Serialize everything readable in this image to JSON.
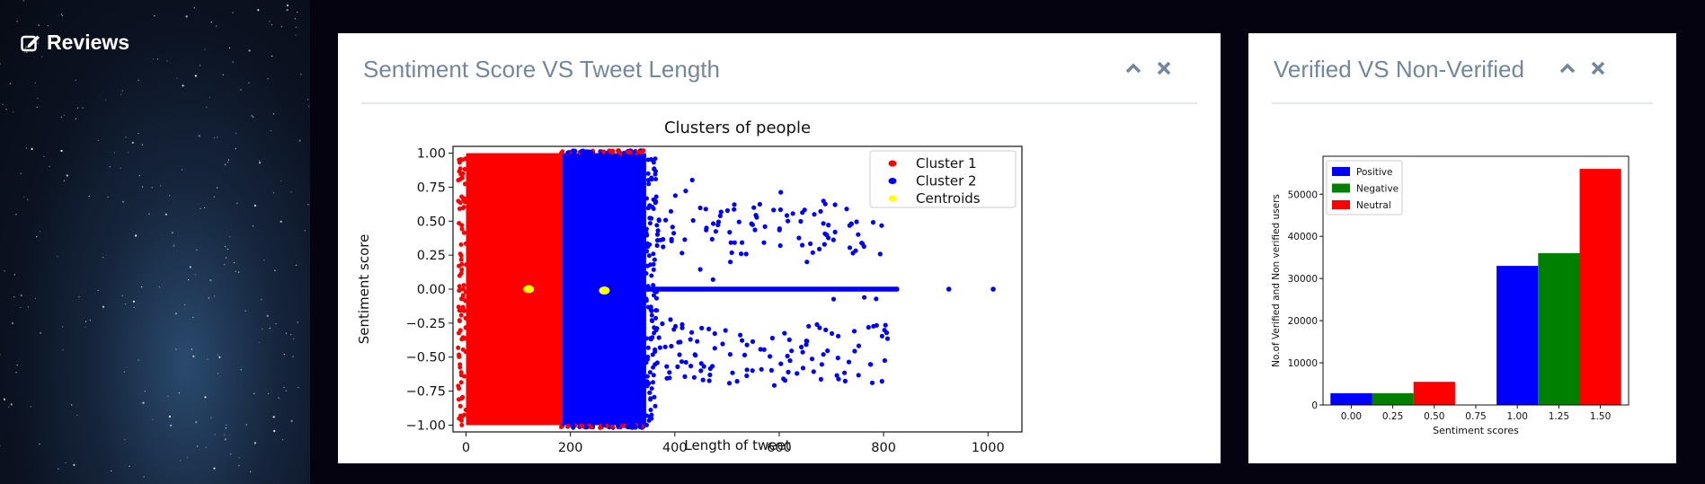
{
  "sidebar": {
    "items": [
      {
        "label": "Reviews",
        "icon": "edit-icon"
      }
    ]
  },
  "panels": [
    {
      "title": "Sentiment Score VS Tweet Length",
      "controls": [
        "chevron-up-icon",
        "close-icon"
      ]
    },
    {
      "title": "Verified VS Non-Verified",
      "controls": [
        "chevron-up-icon",
        "close-icon"
      ]
    }
  ],
  "chart_data": [
    {
      "type": "scatter",
      "title": "Clusters of people",
      "xlabel": "Length of tweet",
      "ylabel": "Sentiment score",
      "xlim": [
        -25,
        1065
      ],
      "ylim": [
        -1.05,
        1.05
      ],
      "xticks": [
        "0",
        "200",
        "400",
        "600",
        "800",
        "1000"
      ],
      "yticks": [
        "1.00",
        "0.75",
        "0.50",
        "0.25",
        "0.00",
        "−0.25",
        "−0.50",
        "−0.75",
        "−1.00"
      ],
      "legend": "top-right",
      "series": [
        {
          "name": "Cluster 1",
          "color": "#ff0000",
          "x_range": [
            0,
            185
          ],
          "y_range": [
            -1,
            1
          ]
        },
        {
          "name": "Cluster 2",
          "color": "#0000ff",
          "x_range": [
            185,
            345
          ],
          "y_range": [
            -1,
            1
          ],
          "sparse_x_range": [
            345,
            810
          ],
          "zero_line_x_range": [
            345,
            830
          ],
          "outliers": [
            [
              925,
              0
            ],
            [
              1010,
              0
            ]
          ]
        },
        {
          "name": "Centroids",
          "color": "#ffff00",
          "points": [
            [
              120,
              0.0
            ],
            [
              265,
              -0.01
            ]
          ]
        }
      ]
    },
    {
      "type": "bar",
      "xlabel": "Sentiment scores",
      "ylabel": "No.of Verified and Non verified users",
      "xlim": [
        -0.17,
        1.67
      ],
      "ylim": [
        0,
        59000
      ],
      "xticks": [
        "0.00",
        "0.25",
        "0.50",
        "0.75",
        "1.00",
        "1.25",
        "1.50"
      ],
      "yticks": [
        "0",
        "10000",
        "20000",
        "30000",
        "40000",
        "50000"
      ],
      "legend": "top-left",
      "series": [
        {
          "name": "Positive",
          "color": "#0000ff",
          "bars": [
            [
              0.0,
              2800
            ],
            [
              1.0,
              33000
            ]
          ]
        },
        {
          "name": "Negative",
          "color": "#008000",
          "bars": [
            [
              0.25,
              2800
            ],
            [
              1.25,
              36000
            ]
          ]
        },
        {
          "name": "Neutral",
          "color": "#ff0000",
          "bars": [
            [
              0.5,
              5500
            ],
            [
              1.5,
              56000
            ]
          ]
        }
      ]
    }
  ]
}
